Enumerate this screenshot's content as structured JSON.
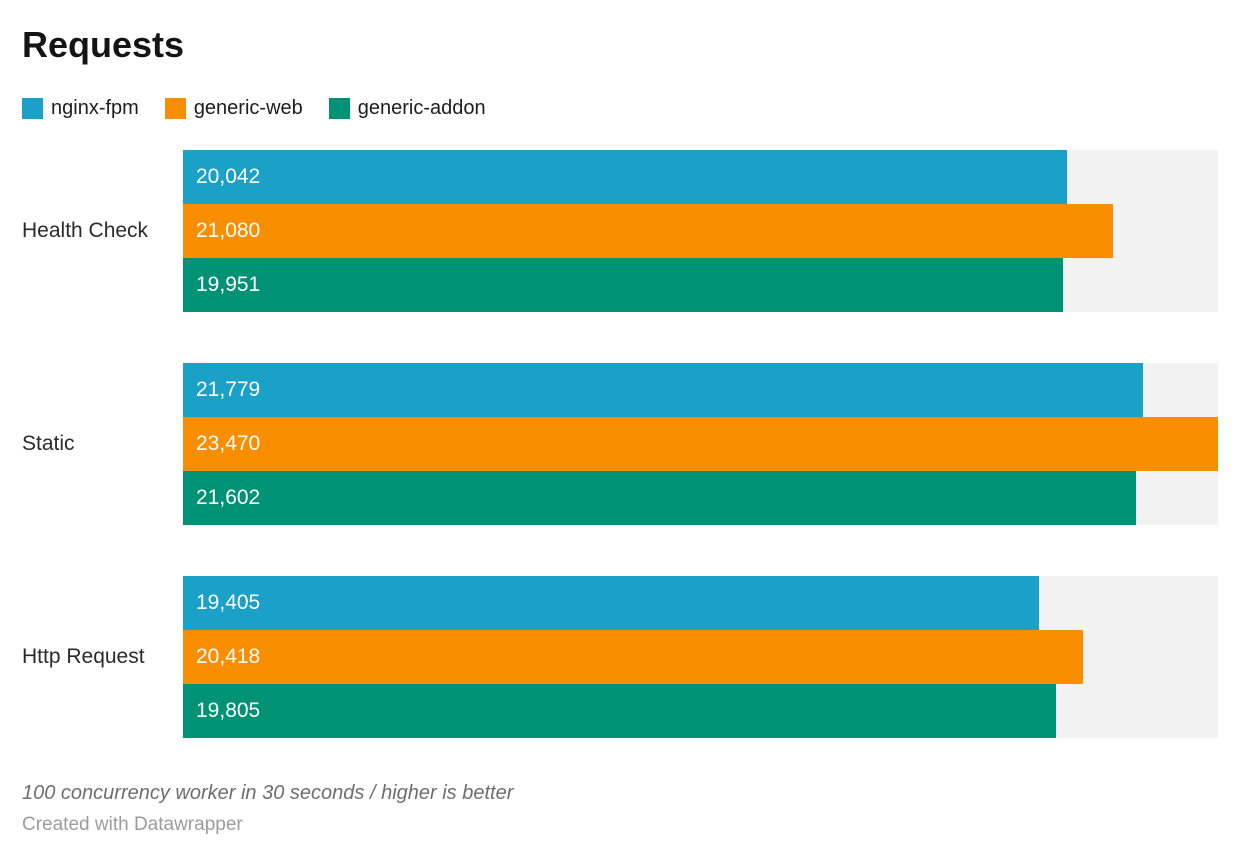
{
  "title": "Requests",
  "legend": {
    "items": [
      {
        "label": "nginx-fpm",
        "color": "#1BA0C7",
        "icon": "square-swatch"
      },
      {
        "label": "generic-web",
        "color": "#F98E00",
        "icon": "square-swatch"
      },
      {
        "label": "generic-addon",
        "color": "#009274",
        "icon": "square-swatch"
      }
    ]
  },
  "chart_data": {
    "type": "bar",
    "orientation": "horizontal",
    "title": "Requests",
    "categories": [
      "Health Check",
      "Static",
      "Http Request"
    ],
    "series": [
      {
        "name": "nginx-fpm",
        "color": "#1BA0C7",
        "values": [
          20042,
          21779,
          19405
        ],
        "labels": [
          "20,042",
          "21,779",
          "19,405"
        ]
      },
      {
        "name": "generic-web",
        "color": "#F98E00",
        "values": [
          21080,
          23470,
          20418
        ],
        "labels": [
          "21,080",
          "23,470",
          "20,418"
        ]
      },
      {
        "name": "generic-addon",
        "color": "#009274",
        "values": [
          19951,
          21602,
          19805
        ],
        "labels": [
          "19,951",
          "21,602",
          "19,805"
        ]
      }
    ],
    "xlim": [
      0,
      23470
    ],
    "value_labels_inside_bars": true,
    "value_label_color": "#ffffff",
    "track_color": "#F2F2F2",
    "grid": false,
    "legend_position": "top",
    "axis_ticks_visible": false
  },
  "footer": {
    "note": "100 concurrency worker in 30 seconds / higher is better",
    "credit": "Created with Datawrapper"
  }
}
